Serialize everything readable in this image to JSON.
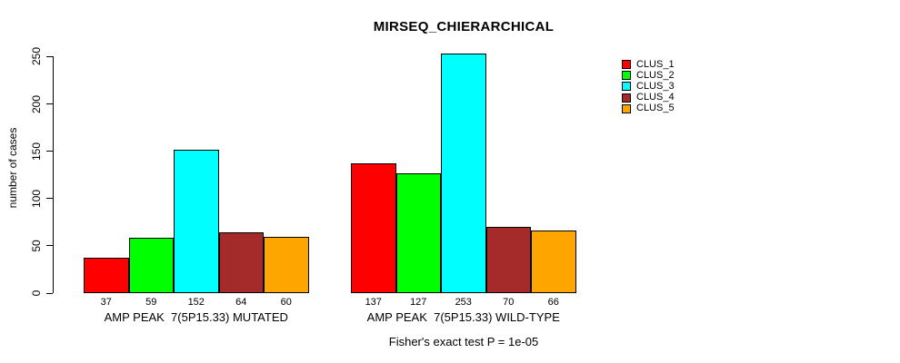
{
  "chart_data": {
    "type": "bar",
    "title": "MIRSEQ_CHIERARCHICAL",
    "ylabel": "number of cases",
    "ylim": [
      0,
      250
    ],
    "yticks": [
      0,
      50,
      100,
      150,
      200,
      250
    ],
    "grid": false,
    "legend_position": "top-right-outside",
    "bar_value_labels_shown": true,
    "categories": [
      "AMP PEAK  7(5P15.33) MUTATED",
      "AMP PEAK  7(5P15.33) WILD-TYPE"
    ],
    "series": [
      {
        "name": "CLUS_1",
        "color": "#ff0000",
        "values": [
          37,
          137
        ]
      },
      {
        "name": "CLUS_2",
        "color": "#00ff00",
        "values": [
          59,
          127
        ]
      },
      {
        "name": "CLUS_3",
        "color": "#00ffff",
        "values": [
          152,
          253
        ]
      },
      {
        "name": "CLUS_4",
        "color": "#a52a2a",
        "values": [
          64,
          70
        ]
      },
      {
        "name": "CLUS_5",
        "color": "#ffa500",
        "values": [
          60,
          66
        ]
      }
    ],
    "caption": "Fisher's exact test P = 1e-05",
    "colors": {
      "background": "#ffffff",
      "axis": "#000000",
      "text": "#000000"
    }
  }
}
